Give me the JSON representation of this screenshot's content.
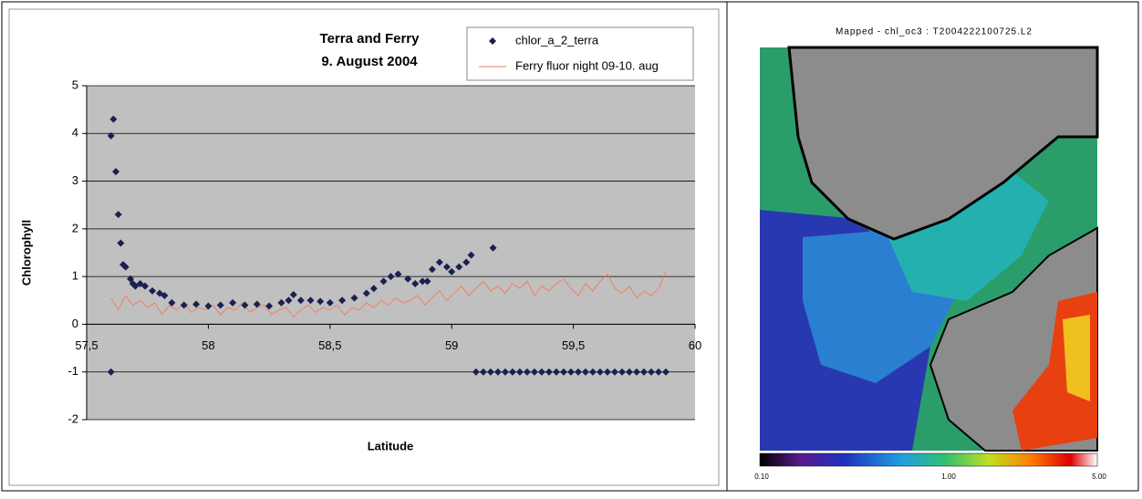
{
  "chart_data": {
    "type": "scatter-line",
    "title": "Terra and Ferry",
    "subtitle": "9. August 2004",
    "x_label": "Latitude",
    "y_label": "Chlorophyll",
    "xlim": [
      57.5,
      60
    ],
    "ylim": [
      -2,
      5
    ],
    "xticks": [
      {
        "value": 57.5,
        "label": "57,5"
      },
      58,
      {
        "value": 58.5,
        "label": "58,5"
      },
      59,
      {
        "value": 59.5,
        "label": "59,5"
      },
      60
    ],
    "yticks": [
      -2,
      -1,
      0,
      1,
      2,
      3,
      4,
      5
    ],
    "grid": true,
    "legend": "upper right",
    "series": [
      {
        "name": "chlor_a_2_terra",
        "color": "#1a2050",
        "kind": "scatter",
        "x": [
          57.6,
          57.6,
          57.61,
          57.62,
          57.63,
          57.64,
          57.65,
          57.66,
          57.68,
          57.69,
          57.7,
          57.72,
          57.74,
          57.77,
          57.8,
          57.82,
          57.85,
          57.9,
          57.95,
          58.0,
          58.05,
          58.1,
          58.15,
          58.2,
          58.25,
          58.3,
          58.33,
          58.35,
          58.38,
          58.42,
          58.46,
          58.5,
          58.55,
          58.6,
          58.65,
          58.68,
          58.72,
          58.75,
          58.78,
          58.82,
          58.85,
          58.88,
          58.9,
          58.92,
          58.95,
          58.98,
          59.0,
          59.03,
          59.06,
          59.08,
          59.17,
          59.1,
          59.13,
          59.16,
          59.19,
          59.22,
          59.25,
          59.28,
          59.31,
          59.34,
          59.37,
          59.4,
          59.43,
          59.46,
          59.49,
          59.52,
          59.55,
          59.58,
          59.61,
          59.64,
          59.67,
          59.7,
          59.73,
          59.76,
          59.79,
          59.82,
          59.85,
          59.88
        ],
        "values": [
          -1,
          3.95,
          4.3,
          3.2,
          2.3,
          1.7,
          1.25,
          1.2,
          0.95,
          0.85,
          0.8,
          0.85,
          0.8,
          0.7,
          0.65,
          0.6,
          0.45,
          0.4,
          0.42,
          0.38,
          0.4,
          0.45,
          0.4,
          0.42,
          0.38,
          0.45,
          0.5,
          0.62,
          0.5,
          0.5,
          0.48,
          0.45,
          0.5,
          0.55,
          0.65,
          0.75,
          0.9,
          1.0,
          1.05,
          0.95,
          0.85,
          0.9,
          0.9,
          1.15,
          1.3,
          1.2,
          1.1,
          1.2,
          1.3,
          1.45,
          1.6,
          -1,
          -1,
          -1,
          -1,
          -1,
          -1,
          -1,
          -1,
          -1,
          -1,
          -1,
          -1,
          -1,
          -1,
          -1,
          -1,
          -1,
          -1,
          -1,
          -1,
          -1,
          -1,
          -1,
          -1,
          -1,
          -1,
          -1
        ]
      },
      {
        "name": "Ferry fluor night 09-10. aug",
        "color": "#f08060",
        "kind": "line",
        "x": [
          57.6,
          57.63,
          57.66,
          57.69,
          57.72,
          57.75,
          57.78,
          57.81,
          57.84,
          57.87,
          57.9,
          57.93,
          57.96,
          57.99,
          58.02,
          58.05,
          58.08,
          58.11,
          58.14,
          58.17,
          58.2,
          58.23,
          58.26,
          58.29,
          58.32,
          58.35,
          58.38,
          58.41,
          58.44,
          58.47,
          58.5,
          58.53,
          58.56,
          58.59,
          58.62,
          58.65,
          58.68,
          58.71,
          58.74,
          58.77,
          58.8,
          58.83,
          58.86,
          58.89,
          58.92,
          58.95,
          58.98,
          59.01,
          59.04,
          59.07,
          59.1,
          59.13,
          59.16,
          59.19,
          59.22,
          59.25,
          59.28,
          59.31,
          59.34,
          59.37,
          59.4,
          59.43,
          59.46,
          59.49,
          59.52,
          59.55,
          59.58,
          59.61,
          59.64,
          59.67,
          59.7,
          59.73,
          59.76,
          59.79,
          59.82,
          59.85,
          59.88
        ],
        "values": [
          0.55,
          0.3,
          0.6,
          0.4,
          0.5,
          0.35,
          0.45,
          0.2,
          0.4,
          0.3,
          0.45,
          0.25,
          0.35,
          0.3,
          0.4,
          0.2,
          0.35,
          0.3,
          0.45,
          0.25,
          0.35,
          0.4,
          0.2,
          0.3,
          0.35,
          0.15,
          0.3,
          0.4,
          0.25,
          0.35,
          0.3,
          0.4,
          0.2,
          0.35,
          0.3,
          0.45,
          0.35,
          0.5,
          0.4,
          0.55,
          0.45,
          0.5,
          0.6,
          0.4,
          0.55,
          0.7,
          0.5,
          0.65,
          0.8,
          0.6,
          0.75,
          0.9,
          0.7,
          0.8,
          0.65,
          0.85,
          0.75,
          0.9,
          0.6,
          0.8,
          0.7,
          0.85,
          0.95,
          0.75,
          0.6,
          0.85,
          0.7,
          0.9,
          1.05,
          0.75,
          0.65,
          0.8,
          0.55,
          0.7,
          0.6,
          0.75,
          1.1
        ]
      }
    ]
  },
  "map": {
    "title": "Mapped - chl_oc3 : T2004222100725.L2",
    "colorbar_labels": [
      "0.10",
      "1.00",
      "5.00"
    ]
  }
}
